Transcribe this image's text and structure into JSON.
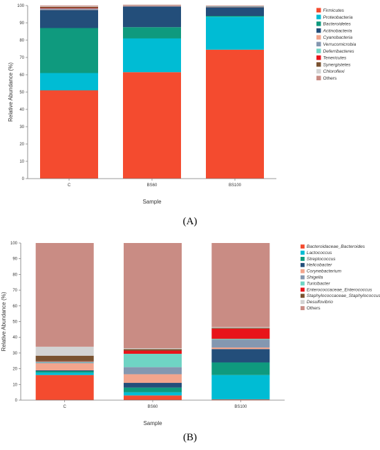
{
  "panels": {
    "a_label": "(A)",
    "b_label": "(B)"
  },
  "chart_data": [
    {
      "type": "bar",
      "stacked": true,
      "panel": "A",
      "title": "",
      "xlabel": "Sample",
      "ylabel": "Relative Abundance (%)",
      "ylim": [
        0,
        100
      ],
      "yticks": [
        0,
        10,
        20,
        30,
        40,
        50,
        60,
        70,
        80,
        90,
        100
      ],
      "categories": [
        "C",
        "BS60",
        "BS100"
      ],
      "legend_position": "right",
      "series": [
        {
          "name": "Firmicutes",
          "color": "#f44b2f",
          "values": [
            51,
            61.5,
            74.5
          ]
        },
        {
          "name": "Proteobacteria",
          "color": "#00bcd4",
          "values": [
            10,
            19.5,
            19
          ]
        },
        {
          "name": "Bacteroidetes",
          "color": "#0f9a7e",
          "values": [
            26,
            6.5,
            0.5
          ]
        },
        {
          "name": "Actinobacteria",
          "color": "#234e7a",
          "values": [
            10.5,
            12,
            5
          ]
        },
        {
          "name": "Cyanobacteria",
          "color": "#f2a58d",
          "values": [
            0.2,
            0.2,
            0.2
          ]
        },
        {
          "name": "Verrucomicrobia",
          "color": "#8497b0",
          "values": [
            0.5,
            0.1,
            0.3
          ]
        },
        {
          "name": "Deferribacteres",
          "color": "#6fd4c4",
          "values": [
            0.1,
            0.1,
            0.1
          ]
        },
        {
          "name": "Tenericutes",
          "color": "#e8141a",
          "values": [
            0.3,
            0.1,
            0.1
          ]
        },
        {
          "name": "Synergistetes",
          "color": "#7a5230",
          "values": [
            0.6,
            0.1,
            0.1
          ]
        },
        {
          "name": "Chloroflexi",
          "color": "#d3d3d3",
          "values": [
            0.3,
            0.1,
            0.1
          ]
        },
        {
          "name": "Others",
          "color": "#c98c84",
          "values": [
            0.5,
            0.3,
            0.1
          ]
        }
      ]
    },
    {
      "type": "bar",
      "stacked": true,
      "panel": "B",
      "title": "",
      "xlabel": "Sample",
      "ylabel": "Relative Abundance (%)",
      "ylim": [
        0,
        100
      ],
      "yticks": [
        0,
        10,
        20,
        30,
        40,
        50,
        60,
        70,
        80,
        90,
        100
      ],
      "categories": [
        "C",
        "BS60",
        "BS100"
      ],
      "legend_position": "right",
      "series": [
        {
          "name": "Bacteroidaceae_Bacteroides",
          "color": "#f44b2f",
          "values": [
            16,
            3,
            0.5
          ]
        },
        {
          "name": "Lactococcus",
          "color": "#00bcd4",
          "values": [
            1.5,
            2,
            15.5
          ]
        },
        {
          "name": "Streptococcus",
          "color": "#0f9a7e",
          "values": [
            1,
            3,
            8
          ]
        },
        {
          "name": "Helicobacter",
          "color": "#234e7a",
          "values": [
            0.5,
            3,
            8.5
          ]
        },
        {
          "name": "Corynebacterium",
          "color": "#f2a58d",
          "values": [
            4.5,
            5.5,
            1
          ]
        },
        {
          "name": "Shigella",
          "color": "#8497b0",
          "values": [
            0.5,
            4.5,
            5
          ]
        },
        {
          "name": "Turicibacter",
          "color": "#6fd4c4",
          "values": [
            0.5,
            8.5,
            0.5
          ]
        },
        {
          "name": "Enterococcaceae_Enterococcus",
          "color": "#e8141a",
          "values": [
            0.3,
            2,
            6.5
          ]
        },
        {
          "name": "Staphylococcaceae_Staphylococcus",
          "color": "#7a5230",
          "values": [
            3.5,
            1,
            0.5
          ]
        },
        {
          "name": "Desulfovibrio",
          "color": "#d3d3d3",
          "values": [
            5.7,
            0.5,
            0.5
          ]
        },
        {
          "name": "Others",
          "color": "#c98c84",
          "values": [
            66,
            67,
            53.5
          ]
        }
      ]
    }
  ]
}
